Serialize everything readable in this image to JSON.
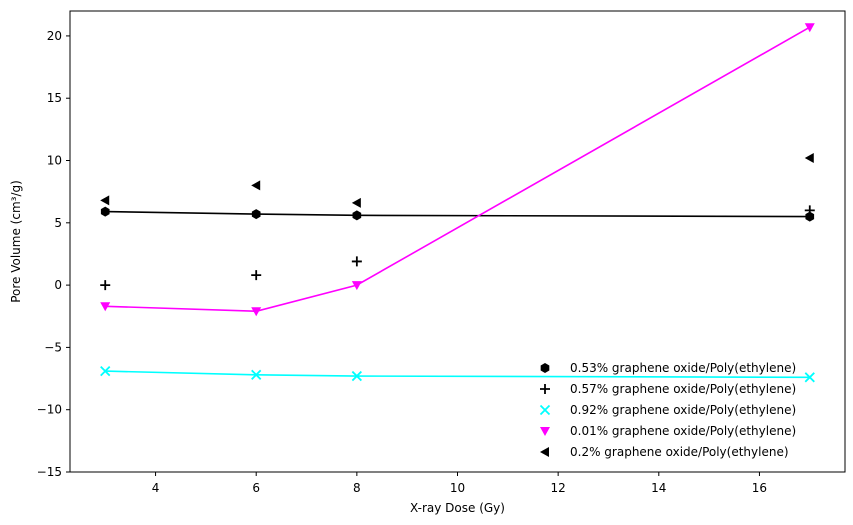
{
  "chart_data": {
    "type": "scatter",
    "title": "",
    "xlabel": "X-ray Dose (Gy)",
    "ylabel": "Pore Volume (cm³/g)",
    "xlim": [
      2.3,
      17.7
    ],
    "ylim": [
      -15,
      22
    ],
    "xticks": [
      4,
      6,
      8,
      10,
      12,
      14,
      16
    ],
    "yticks": [
      -15,
      -10,
      -5,
      0,
      5,
      10,
      15,
      20
    ],
    "grid": false,
    "legend_position": "lower-right",
    "series": [
      {
        "name": "0.53% graphene oxide/Poly(ethylene)",
        "marker": "hexagon",
        "color": "#000000",
        "points": [
          [
            3,
            5.9
          ],
          [
            6,
            5.7
          ],
          [
            8,
            5.6
          ],
          [
            17,
            5.5
          ]
        ],
        "fit_line": [
          [
            3,
            5.9
          ],
          [
            6,
            5.7
          ],
          [
            8,
            5.6
          ],
          [
            17,
            5.5
          ]
        ]
      },
      {
        "name": "0.57% graphene oxide/Poly(ethylene)",
        "marker": "plus",
        "color": "#000000",
        "points": [
          [
            3,
            0.0
          ],
          [
            6,
            0.8
          ],
          [
            8,
            1.9
          ],
          [
            17,
            6.0
          ]
        ]
      },
      {
        "name": "0.92% graphene oxide/Poly(ethylene)",
        "marker": "x",
        "color": "#00ffff",
        "points": [
          [
            3,
            -6.9
          ],
          [
            6,
            -7.2
          ],
          [
            8,
            -7.3
          ],
          [
            17,
            -7.4
          ]
        ],
        "fit_line": [
          [
            3,
            -6.9
          ],
          [
            6,
            -7.2
          ],
          [
            8,
            -7.3
          ],
          [
            17,
            -7.4
          ]
        ]
      },
      {
        "name": "0.01% graphene oxide/Poly(ethylene)",
        "marker": "triangle-down",
        "color": "#ff00ff",
        "points": [
          [
            3,
            -1.7
          ],
          [
            6,
            -2.1
          ],
          [
            8,
            0.0
          ],
          [
            17,
            20.7
          ]
        ],
        "fit_line": [
          [
            3,
            -1.7
          ],
          [
            6,
            -2.1
          ],
          [
            8,
            0.0
          ],
          [
            17,
            20.7
          ]
        ]
      },
      {
        "name": "0.2% graphene oxide/Poly(ethylene)",
        "marker": "triangle-left",
        "color": "#000000",
        "points": [
          [
            3,
            6.8
          ],
          [
            6,
            8.0
          ],
          [
            8,
            6.6
          ],
          [
            17,
            10.2
          ]
        ]
      }
    ]
  }
}
